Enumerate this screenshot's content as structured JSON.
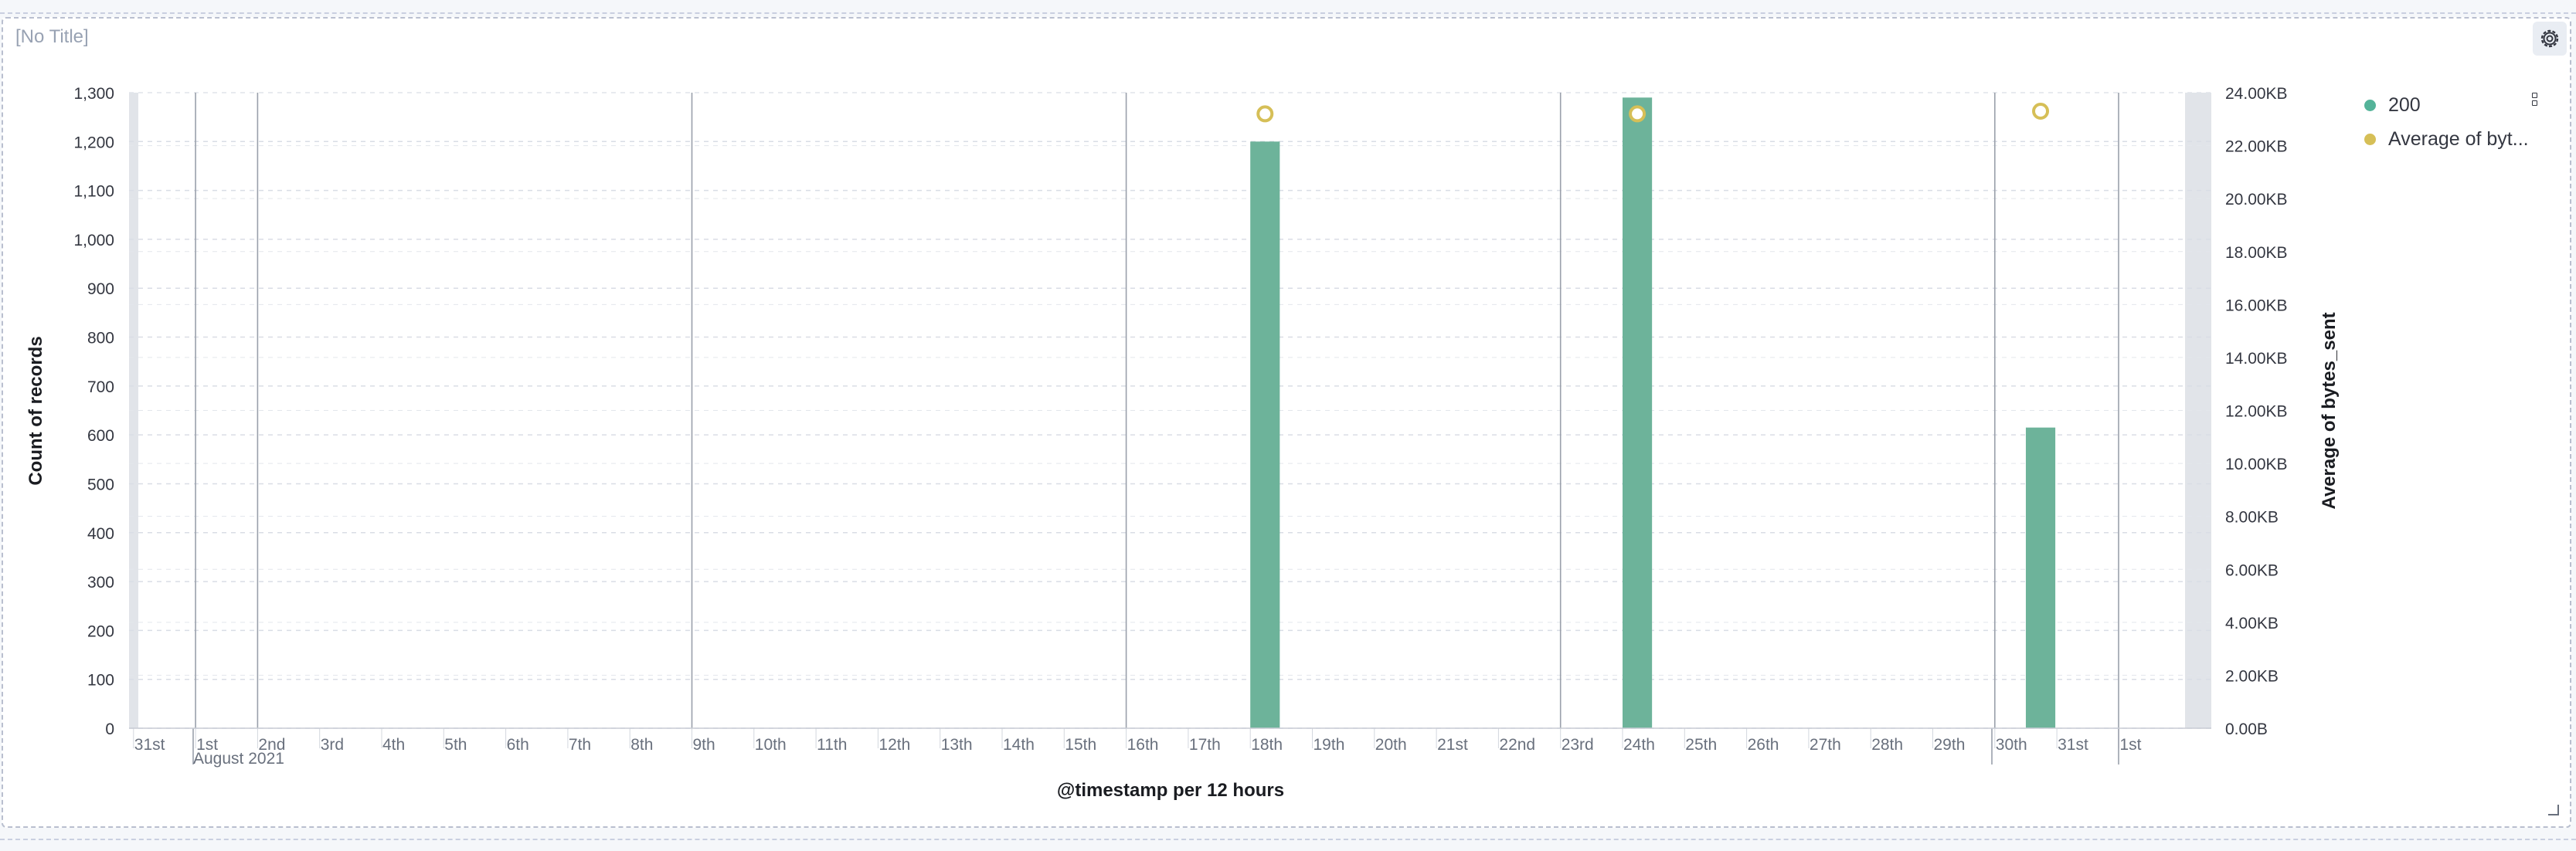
{
  "panel": {
    "title": "[No Title]"
  },
  "icons": {
    "settings": "gear-icon",
    "legend_menu": "vertical-dots-icon",
    "resize": "resize-handle-icon"
  },
  "colors": {
    "bars": "#6db39a",
    "line_points": "#d6bf57",
    "text": "#343741",
    "muted": "#98a2b3"
  },
  "legend": {
    "items": [
      {
        "label": "200",
        "color": "#54b399"
      },
      {
        "label": "Average of byt...",
        "color": "#d6bf57"
      }
    ]
  },
  "chart_data": {
    "type": "bar",
    "xlabel": "@timestamp per 12 hours",
    "ylabel": "Count of records",
    "y2label": "Average of bytes_sent",
    "x_tick_labels": [
      "31st",
      "1st",
      "2nd",
      "3rd",
      "4th",
      "5th",
      "6th",
      "7th",
      "8th",
      "9th",
      "10th",
      "11th",
      "12th",
      "13th",
      "14th",
      "15th",
      "16th",
      "17th",
      "18th",
      "19th",
      "20th",
      "21st",
      "22nd",
      "23rd",
      "24th",
      "25th",
      "26th",
      "27th",
      "28th",
      "29th",
      "30th",
      "31st",
      "1st"
    ],
    "x_sublabel": "August 2021",
    "y_ticks": [
      0,
      100,
      200,
      300,
      400,
      500,
      600,
      700,
      800,
      900,
      1000,
      1100,
      1200,
      1300
    ],
    "y_tick_labels": [
      "0",
      "100",
      "200",
      "300",
      "400",
      "500",
      "600",
      "700",
      "800",
      "900",
      "1,000",
      "1,100",
      "1,200",
      "1,300"
    ],
    "ylim": [
      0,
      1300
    ],
    "y2_ticks": [
      0,
      2,
      4,
      6,
      8,
      10,
      12,
      14,
      16,
      18,
      20,
      22,
      24
    ],
    "y2_tick_labels": [
      "0.00B",
      "2.00KB",
      "4.00KB",
      "6.00KB",
      "8.00KB",
      "10.00KB",
      "12.00KB",
      "14.00KB",
      "16.00KB",
      "18.00KB",
      "20.00KB",
      "22.00KB",
      "24.00KB"
    ],
    "y2lim": [
      0,
      24
    ],
    "grid": true,
    "legend_position": "right",
    "series": [
      {
        "name": "200",
        "type": "bar",
        "color": "#6db39a",
        "points": [
          {
            "x": "Aug 17 00:00",
            "y": 1200
          },
          {
            "x": "Aug 23 00:00",
            "y": 1290
          },
          {
            "x": "Aug 29 12:00",
            "y": 615
          }
        ]
      },
      {
        "name": "Average of byt...",
        "type": "points",
        "color": "#d6bf57",
        "unit": "KB",
        "points": [
          {
            "x": "Aug 17 00:00",
            "y": 23.2
          },
          {
            "x": "Aug 23 00:00",
            "y": 23.2
          },
          {
            "x": "Aug 29 12:00",
            "y": 23.3
          }
        ]
      }
    ]
  }
}
